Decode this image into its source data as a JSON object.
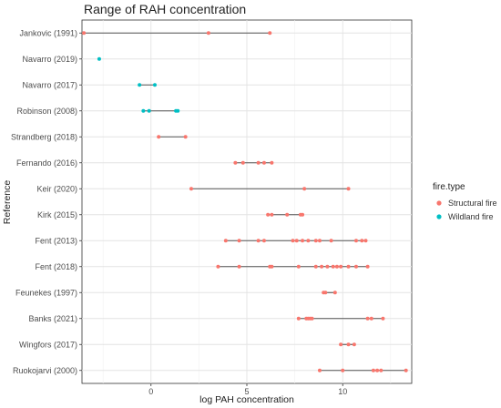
{
  "chart_data": {
    "type": "scatter",
    "title": "Range of RAH concentration",
    "xlabel": "log PAH concentration",
    "ylabel": "Reference",
    "xlim": [
      -3.6,
      13.6
    ],
    "xticks": [
      0,
      5,
      10
    ],
    "grid": true,
    "legend": {
      "title": "fire.type",
      "placement": "right",
      "entries": [
        {
          "name": "Structural fire",
          "color": "#F8766D"
        },
        {
          "name": "Wildland fire",
          "color": "#00BFC4"
        }
      ]
    },
    "series": [
      {
        "name": "Structural fire",
        "color": "#F8766D"
      },
      {
        "name": "Wildland fire",
        "color": "#00BFC4"
      }
    ],
    "categories": [
      {
        "label": "Jankovic (1991)",
        "fire_type": "Structural fire",
        "x": [
          -3.5,
          3.0,
          6.2
        ]
      },
      {
        "label": "Navarro (2019)",
        "fire_type": "Wildland fire",
        "x": [
          -2.7
        ]
      },
      {
        "label": "Navarro (2017)",
        "fire_type": "Wildland fire",
        "x": [
          -0.6,
          0.2
        ]
      },
      {
        "label": "Robinson (2008)",
        "fire_type": "Wildland fire",
        "x": [
          -0.4,
          -0.1,
          1.3,
          1.4
        ]
      },
      {
        "label": "Strandberg (2018)",
        "fire_type": "Structural fire",
        "x": [
          0.4,
          1.8
        ]
      },
      {
        "label": "Fernando (2016)",
        "fire_type": "Structural fire",
        "x": [
          4.4,
          4.8,
          5.6,
          5.9,
          6.3
        ]
      },
      {
        "label": "Keir (2020)",
        "fire_type": "Structural fire",
        "x": [
          2.1,
          8.0,
          10.3
        ]
      },
      {
        "label": "Kirk (2015)",
        "fire_type": "Structural fire",
        "x": [
          6.1,
          6.3,
          7.1,
          7.8,
          7.9
        ]
      },
      {
        "label": "Fent (2013)",
        "fire_type": "Structural fire",
        "x": [
          3.9,
          4.6,
          5.6,
          5.9,
          7.4,
          7.6,
          7.9,
          8.2,
          8.6,
          8.8,
          9.4,
          10.7,
          11.0,
          11.2
        ]
      },
      {
        "label": "Fent (2018)",
        "fire_type": "Structural fire",
        "x": [
          3.5,
          4.6,
          6.2,
          6.3,
          7.7,
          8.6,
          8.9,
          9.2,
          9.5,
          9.7,
          9.9,
          10.3,
          10.7,
          11.3
        ]
      },
      {
        "label": "Feunekes (1997)",
        "fire_type": "Structural fire",
        "x": [
          9.0,
          9.1,
          9.6
        ]
      },
      {
        "label": "Banks (2021)",
        "fire_type": "Structural fire",
        "x": [
          7.7,
          8.1,
          8.2,
          8.3,
          8.4,
          11.3,
          11.5,
          12.1
        ]
      },
      {
        "label": "Wingfors (2017)",
        "fire_type": "Structural fire",
        "x": [
          9.9,
          10.3,
          10.6
        ]
      },
      {
        "label": "Ruokojarvi (2000)",
        "fire_type": "Structural fire",
        "x": [
          8.8,
          10.0,
          11.6,
          11.8,
          12.0,
          13.3
        ]
      }
    ]
  }
}
